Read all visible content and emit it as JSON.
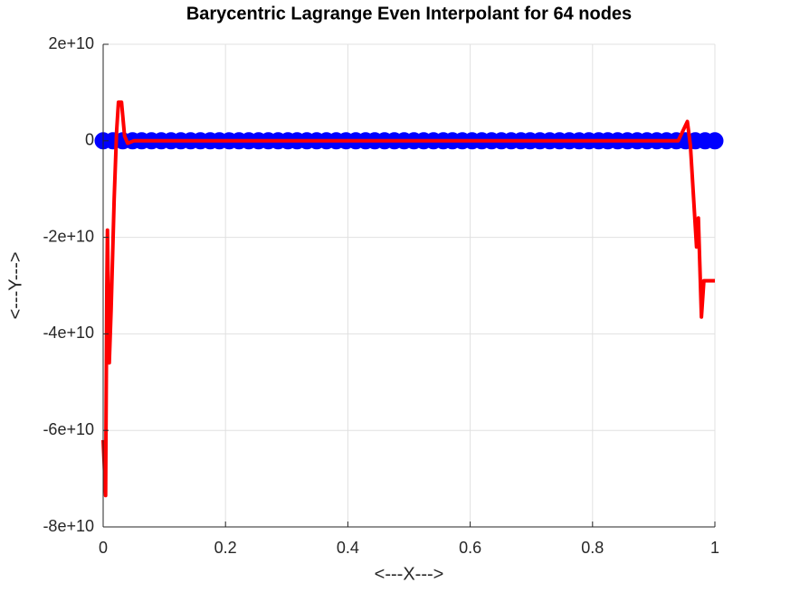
{
  "chart_data": {
    "type": "line",
    "title": "Barycentric Lagrange Even Interpolant for 64 nodes",
    "x_label": "<---X--->",
    "y_label": "<---Y--->",
    "xlim": [
      0,
      1
    ],
    "xticks": [
      0,
      0.2,
      0.4,
      0.6,
      0.8,
      1
    ],
    "ylim": [
      -80000000000,
      20000000000
    ],
    "yticks": [
      {
        "value": -80000000000,
        "label": "-8e+10"
      },
      {
        "value": -60000000000,
        "label": "-6e+10"
      },
      {
        "value": -40000000000,
        "label": "-4e+10"
      },
      {
        "value": -20000000000,
        "label": "-2e+10"
      },
      0,
      {
        "value": 20000000000,
        "label": "2e+10"
      }
    ],
    "grid": true,
    "series": [
      {
        "color": "#0000ff",
        "marker": "circle",
        "x": [
          0,
          0.016,
          0.032,
          0.048,
          0.063,
          0.079,
          0.095,
          0.111,
          0.127,
          0.143,
          0.159,
          0.175,
          0.19,
          0.206,
          0.222,
          0.238,
          0.254,
          0.27,
          0.286,
          0.302,
          0.317,
          0.333,
          0.349,
          0.365,
          0.381,
          0.397,
          0.413,
          0.429,
          0.444,
          0.46,
          0.476,
          0.492,
          0.508,
          0.524,
          0.54,
          0.556,
          0.571,
          0.587,
          0.603,
          0.619,
          0.635,
          0.651,
          0.667,
          0.683,
          0.698,
          0.714,
          0.73,
          0.746,
          0.762,
          0.778,
          0.794,
          0.81,
          0.825,
          0.841,
          0.857,
          0.873,
          0.889,
          0.905,
          0.921,
          0.937,
          0.952,
          0.968,
          0.984,
          1
        ],
        "values": [
          0,
          0,
          0,
          0,
          0,
          0,
          0,
          0,
          0,
          0,
          0,
          0,
          0,
          0,
          0,
          0,
          0,
          0,
          0,
          0,
          0,
          0,
          0,
          0,
          0,
          0,
          0,
          0,
          0,
          0,
          0,
          0,
          0,
          0,
          0,
          0,
          0,
          0,
          0,
          0,
          0,
          0,
          0,
          0,
          0,
          0,
          0,
          0,
          0,
          0,
          0,
          0,
          0,
          0,
          0,
          0,
          0,
          0,
          0,
          0,
          0,
          0,
          0,
          0
        ]
      },
      {
        "color": "#ff0000",
        "marker": "none",
        "x": [
          0,
          0.004,
          0.006,
          0.007,
          0.01,
          0.013,
          0.018,
          0.022,
          0.025,
          0.03,
          0.035,
          0.04,
          0.05,
          0.2,
          0.5,
          0.8,
          0.94,
          0.955,
          0.96,
          0.97,
          0.973,
          0.978,
          0.982,
          1
        ],
        "values": [
          -62000000000,
          -73500000000,
          -30000000000,
          -18500000000,
          -46000000000,
          -35000000000,
          -12000000000,
          2000000000,
          8000000000,
          8000000000,
          1000000000,
          -500000000,
          0,
          0,
          0,
          0,
          0,
          4000000000,
          -1000000000,
          -22000000000,
          -16000000000,
          -36500000000,
          -29000000000,
          -29000000000
        ]
      }
    ]
  }
}
